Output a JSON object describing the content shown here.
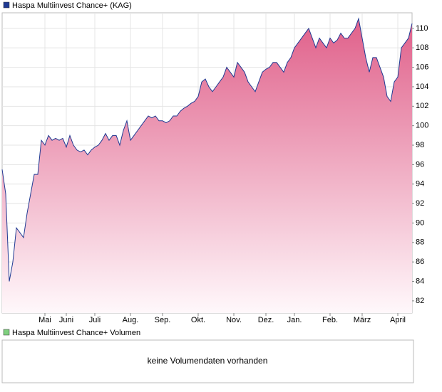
{
  "chart_data": {
    "type": "line",
    "series": [
      {
        "name": "Haspa Multiinvest Chance+ (KAG)",
        "color": "#1f3a93",
        "values": [
          95.5,
          93,
          84,
          86,
          89.5,
          89,
          88.5,
          91,
          93,
          95,
          95,
          98.5,
          98,
          99,
          98.5,
          98.7,
          98.5,
          98.7,
          97.8,
          99,
          98,
          97.5,
          97.3,
          97.5,
          97,
          97.5,
          97.8,
          98,
          98.5,
          99.2,
          98.5,
          99,
          99,
          98,
          99.5,
          100.5,
          98.5,
          99,
          99.5,
          100,
          100.5,
          101,
          100.8,
          101,
          100.5,
          100.5,
          100.3,
          100.5,
          101,
          101,
          101.5,
          101.8,
          102,
          102.3,
          102.5,
          103,
          104.5,
          104.8,
          104,
          103.5,
          104,
          104.5,
          105,
          106,
          105.5,
          105,
          106.5,
          106,
          105.5,
          104.5,
          104,
          103.5,
          104.5,
          105.5,
          105.8,
          106,
          106.5,
          106.5,
          106,
          105.5,
          106.5,
          107,
          108,
          108.5,
          109,
          109.5,
          110,
          109,
          108,
          109,
          108.5,
          108,
          109,
          108.5,
          108.8,
          109.5,
          109,
          109,
          109.5,
          110,
          111,
          109,
          107,
          105.5,
          107,
          107,
          106,
          105,
          103,
          102.5,
          104.5,
          105,
          108,
          108.5,
          109,
          110.5
        ]
      }
    ],
    "xlim": [
      0,
      115
    ],
    "xticks": [
      {
        "value": 12,
        "label": "Mai"
      },
      {
        "value": 18,
        "label": "Juni"
      },
      {
        "value": 26,
        "label": "Juli"
      },
      {
        "value": 36,
        "label": "Aug."
      },
      {
        "value": 45,
        "label": "Sep."
      },
      {
        "value": 55,
        "label": "Okt."
      },
      {
        "value": 65,
        "label": "Nov."
      },
      {
        "value": 74,
        "label": "Dez."
      },
      {
        "value": 82,
        "label": "Jan."
      },
      {
        "value": 92,
        "label": "Feb."
      },
      {
        "value": 101,
        "label": "März"
      },
      {
        "value": 111,
        "label": "April"
      }
    ],
    "ylim": [
      80.75,
      111.6
    ],
    "yticks": [
      82,
      84,
      86,
      88,
      90,
      92,
      94,
      96,
      98,
      100,
      102,
      104,
      106,
      108,
      110
    ],
    "grid": true,
    "fill_top": "#e0608a",
    "fill_bottom": "#fff8fb"
  },
  "volume_panel": {
    "title": "Haspa Multiinvest Chance+ Volumen",
    "color": "#7fd07f",
    "message": "keine Volumendaten vorhanden"
  }
}
